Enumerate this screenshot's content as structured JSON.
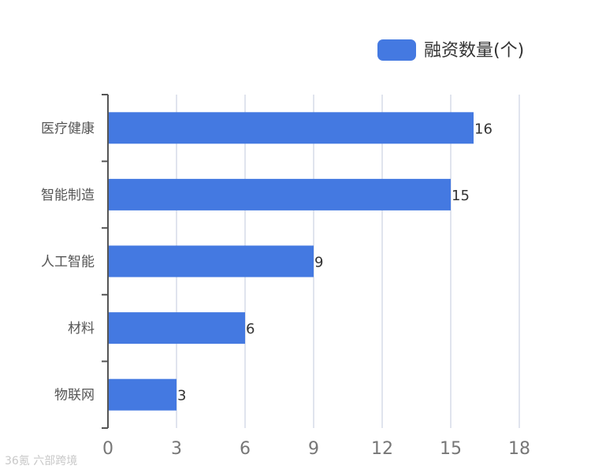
{
  "chart_data": {
    "type": "bar",
    "orientation": "horizontal",
    "categories": [
      "医疗健康",
      "智能制造",
      "人工智能",
      "材料",
      "物联网"
    ],
    "series": [
      {
        "name": "融资数量(个)",
        "values": [
          16,
          15,
          9,
          6,
          3
        ]
      }
    ],
    "xlim": [
      0,
      18
    ],
    "xticks": [
      0,
      3,
      6,
      9,
      12,
      15,
      18
    ],
    "grid": true,
    "legend_position": "top-right",
    "show_data_labels": true,
    "color": "#4479e1"
  },
  "watermark": {
    "text": "36氪 六部跨境"
  }
}
